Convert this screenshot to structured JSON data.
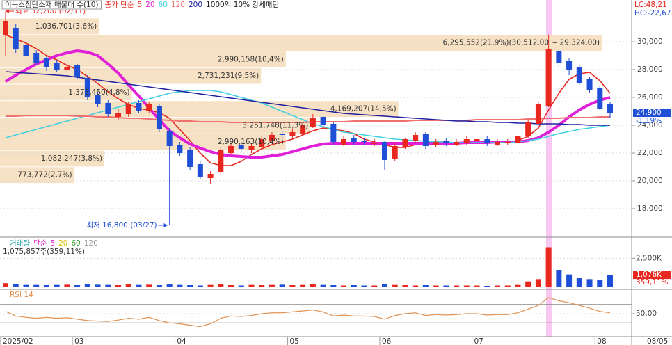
{
  "chart_data": [
    {
      "type": "candlestick",
      "title": "이녹스첨단소재 매물대 수(10)",
      "legend_prefix": "종가 단순",
      "pattern": "1000억 10% 강세패턴",
      "lc_label": "LC:48,21",
      "hc_label": "HC:-22,67",
      "max_label": "최고 32,200 (02/11)",
      "min_label": "최저 16,800 (03/27)",
      "last_price_label": "24,900",
      "change_label": "-1,19%",
      "date_label": "08/05",
      "categories": [
        "2025/02",
        null,
        null,
        null,
        null,
        null,
        null,
        "03",
        null,
        null,
        null,
        null,
        null,
        null,
        null,
        null,
        null,
        "04",
        null,
        null,
        null,
        null,
        null,
        null,
        null,
        null,
        null,
        null,
        "05",
        null,
        null,
        null,
        null,
        null,
        null,
        null,
        null,
        "06",
        null,
        null,
        null,
        null,
        null,
        null,
        null,
        null,
        "07",
        null,
        null,
        null,
        null,
        null,
        null,
        null,
        null,
        null,
        null,
        null,
        "08",
        null
      ],
      "up_color": "#e8271f",
      "down_color": "#1f4fd6",
      "open": [
        30500,
        31000,
        29800,
        29200,
        28800,
        28500,
        28000,
        28300,
        27400,
        26200,
        25600,
        24600,
        24800,
        25600,
        25000,
        25400,
        23600,
        22600,
        22200,
        21200,
        20200,
        20600,
        22000,
        22600,
        22200,
        22400,
        22900,
        23400,
        23200,
        23400,
        23900,
        24600,
        24100,
        22600,
        23100,
        22900,
        22700,
        22800,
        21600,
        22400,
        22900,
        23400,
        22600,
        22900,
        22600,
        22700,
        22900,
        23000,
        22600,
        22700,
        22700,
        23200,
        24100,
        25400,
        29300,
        28600,
        28200,
        27300,
        26700,
        25500
      ],
      "high": [
        32200,
        31300,
        30000,
        29400,
        29000,
        28700,
        28500,
        28400,
        27600,
        26400,
        25800,
        25200,
        25700,
        25800,
        25700,
        25500,
        23800,
        22800,
        22400,
        21400,
        20700,
        22400,
        22700,
        22800,
        22700,
        23200,
        23500,
        23600,
        23700,
        24200,
        24800,
        24700,
        24200,
        23200,
        23300,
        23100,
        23000,
        22900,
        22700,
        23100,
        23500,
        23500,
        23000,
        23100,
        23000,
        23200,
        23200,
        23200,
        23000,
        23000,
        23300,
        24400,
        25700,
        30512,
        29400,
        28800,
        28300,
        27500,
        26800,
        25700
      ],
      "low": [
        29000,
        29200,
        28800,
        28300,
        27900,
        27800,
        27800,
        27300,
        25800,
        25300,
        24600,
        24400,
        24600,
        24900,
        24900,
        23500,
        16800,
        21800,
        20800,
        20100,
        19800,
        20400,
        21900,
        22100,
        22000,
        22300,
        22800,
        23100,
        23100,
        23300,
        23800,
        23800,
        22600,
        22500,
        22600,
        22600,
        22500,
        20800,
        21400,
        22300,
        22700,
        22300,
        22400,
        22500,
        22500,
        22600,
        22700,
        22500,
        22500,
        22600,
        22600,
        23100,
        24000,
        25300,
        28200,
        27600,
        26900,
        26300,
        25100,
        24500
      ],
      "close": [
        31500,
        29500,
        29000,
        28500,
        28200,
        28000,
        28200,
        27500,
        26000,
        25500,
        24800,
        24900,
        25500,
        25000,
        25500,
        23700,
        22500,
        22000,
        21000,
        20300,
        20500,
        22200,
        22500,
        22300,
        22500,
        23000,
        23300,
        23300,
        23500,
        24000,
        24500,
        24000,
        22800,
        23000,
        22800,
        22800,
        22700,
        21500,
        22500,
        23000,
        23300,
        22500,
        22800,
        22700,
        22800,
        23000,
        23000,
        22700,
        22800,
        22800,
        23200,
        24200,
        25500,
        29500,
        28500,
        28000,
        27000,
        26500,
        25200,
        24900
      ],
      "series": [
        {
          "name": "5",
          "color": "#e8271f",
          "values": [
            30500,
            30200,
            29900,
            29500,
            29000,
            28700,
            28300,
            28000,
            27500,
            27000,
            26400,
            25900,
            25500,
            25200,
            25100,
            24900,
            24500,
            23700,
            22900,
            22000,
            21300,
            21100,
            21100,
            21400,
            21900,
            22300,
            22600,
            22800,
            23000,
            23300,
            23600,
            23800,
            23700,
            23600,
            23400,
            23000,
            22800,
            22600,
            22400,
            22400,
            22600,
            22700,
            22800,
            22800,
            22700,
            22800,
            22800,
            22800,
            22800,
            22800,
            22900,
            23200,
            23800,
            25100,
            26300,
            27300,
            27700,
            27800,
            27200,
            26300
          ]
        },
        {
          "name": "20",
          "color": "#e020d8",
          "values": [
            27150,
            27600,
            28000,
            28400,
            28700,
            29000,
            29200,
            29350,
            29250,
            29000,
            28400,
            27750,
            26900,
            26100,
            25250,
            24400,
            23600,
            23100,
            22650,
            22350,
            22100,
            21900,
            21800,
            21750,
            21700,
            21700,
            21800,
            21900,
            22100,
            22300,
            22500,
            22650,
            22700,
            22700,
            22700,
            22700,
            22700,
            22700,
            22700,
            22700,
            22700,
            22700,
            22700,
            22700,
            22700,
            22750,
            22750,
            22750,
            22800,
            22800,
            22800,
            22900,
            23100,
            23500,
            24000,
            24600,
            25100,
            25500,
            25800,
            26000
          ]
        },
        {
          "name": "60",
          "color": "#3fd0e0",
          "values": [
            23100,
            23300,
            23500,
            23700,
            23900,
            24100,
            24300,
            24500,
            24700,
            24900,
            25100,
            25300,
            25500,
            25700,
            25900,
            26100,
            26300,
            26400,
            26500,
            26500,
            26500,
            26400,
            26200,
            26000,
            25800,
            25600,
            25300,
            25000,
            24700,
            24400,
            24100,
            23900,
            23700,
            23500,
            23400,
            23300,
            23200,
            23100,
            23000,
            22950,
            22900,
            22850,
            22800,
            22800,
            22750,
            22750,
            22750,
            22750,
            22750,
            22750,
            22800,
            22900,
            23000,
            23200,
            23400,
            23550,
            23700,
            23800,
            23900,
            24000
          ]
        },
        {
          "name": "120",
          "color": "#f07070",
          "values": [
            24650,
            24650,
            24700,
            24700,
            24700,
            24700,
            24700,
            24650,
            24650,
            24600,
            24600,
            24550,
            24500,
            24500,
            24450,
            24400,
            24350,
            24300,
            24300,
            24250,
            24250,
            24250,
            24200,
            24200,
            24200,
            24200,
            24200,
            24200,
            24200,
            24200,
            24250,
            24250,
            24250,
            24250,
            24300,
            24300,
            24300,
            24300,
            24300,
            24300,
            24350,
            24350,
            24350,
            24350,
            24350,
            24350,
            24400,
            24400,
            24400,
            24400,
            24400,
            24450,
            24450,
            24500,
            24500,
            24550,
            24550,
            24550,
            24600,
            24600
          ]
        },
        {
          "name": "200",
          "color": "#2020a0",
          "values": [
            27850,
            27800,
            27750,
            27700,
            27650,
            27600,
            27550,
            27450,
            27350,
            27250,
            27150,
            27050,
            26950,
            26850,
            26750,
            26650,
            26550,
            26450,
            26350,
            26250,
            26150,
            26050,
            25950,
            25850,
            25750,
            25650,
            25550,
            25450,
            25350,
            25250,
            25150,
            25050,
            24950,
            24850,
            24800,
            24750,
            24700,
            24650,
            24600,
            24550,
            24500,
            24450,
            24400,
            24350,
            24300,
            24300,
            24250,
            24250,
            24200,
            24200,
            24150,
            24150,
            24100,
            24100,
            24100,
            24050,
            24050,
            24000,
            24000,
            24000
          ]
        }
      ],
      "volume_profile": {
        "color": "#f7e1c4",
        "edges": [
          31700,
          30512,
          29324,
          28136,
          26948,
          25760,
          24572,
          23384,
          22196,
          21008,
          19820
        ],
        "values": [
          3.6,
          21.9,
          10.4,
          9.5,
          4.8,
          14.5,
          11.3,
          10.4,
          3.8,
          2.7
        ],
        "value_labels": [
          "1,036,701(3,6%)",
          "6,295,552(21,9%)(30,512,00 ~ 29,324,00)",
          "2,990,158(10,4%)",
          "2,731,231(9,5%)",
          "1,373,450(4,8%)",
          "4,169,207(14,5%)",
          "3,251,748(11,3%)",
          "2,990,163(10,4%)",
          "1,082,247(3,8%)",
          "773,772(2,7%)"
        ]
      },
      "ylim": [
        16000,
        33000
      ],
      "yticks": [
        {
          "value": 30000,
          "label": "30,000"
        },
        {
          "value": 28000,
          "label": "28,000"
        },
        {
          "value": 26000,
          "label": "26,000"
        },
        {
          "value": 24000,
          "label": "24,000"
        },
        {
          "value": 22000,
          "label": "22,000"
        },
        {
          "value": 20000,
          "label": "20,000"
        },
        {
          "value": 18000,
          "label": "18,000"
        }
      ],
      "grid": true
    },
    {
      "type": "bar",
      "title": "거래량",
      "legend_prefix": "단순",
      "legend": [
        {
          "name": "5",
          "color": "#e020d8"
        },
        {
          "name": "20",
          "color": "#e0c000"
        },
        {
          "name": "60",
          "color": "#30a030"
        },
        {
          "name": "120",
          "color": "#999999"
        }
      ],
      "volume_label": "1,075,857주(359,11%)",
      "last_label": "1,076K",
      "ratio_label": "359,11%",
      "values": [
        350,
        250,
        200,
        200,
        180,
        200,
        220,
        180,
        250,
        220,
        200,
        180,
        250,
        200,
        220,
        180,
        300,
        200,
        180,
        150,
        200,
        250,
        180,
        150,
        200,
        180,
        200,
        220,
        180,
        200,
        250,
        200,
        180,
        150,
        180,
        150,
        150,
        300,
        200,
        180,
        150,
        180,
        150,
        150,
        150,
        150,
        150,
        120,
        150,
        150,
        200,
        500,
        700,
        3450,
        1500,
        1100,
        800,
        700,
        600,
        1076
      ],
      "ylim": [
        0,
        4200
      ],
      "yticks": [
        {
          "value": 2500,
          "label": "2,500K"
        }
      ]
    },
    {
      "type": "line",
      "title": "RSI 14",
      "color": "#e09050",
      "values": [
        55,
        45,
        42,
        40,
        42,
        40,
        41,
        38,
        35,
        34,
        33,
        36,
        40,
        38,
        42,
        35,
        30,
        28,
        25,
        22,
        28,
        40,
        45,
        44,
        46,
        50,
        52,
        52,
        54,
        56,
        58,
        54,
        45,
        47,
        45,
        45,
        44,
        38,
        46,
        50,
        52,
        46,
        48,
        47,
        48,
        50,
        50,
        47,
        48,
        48,
        52,
        60,
        68,
        85,
        78,
        74,
        68,
        62,
        55,
        52
      ],
      "guide_lines": [
        70,
        30
      ],
      "ylim": [
        0,
        100
      ],
      "yticks": [
        {
          "value": 50,
          "label": "50,00"
        }
      ]
    }
  ]
}
